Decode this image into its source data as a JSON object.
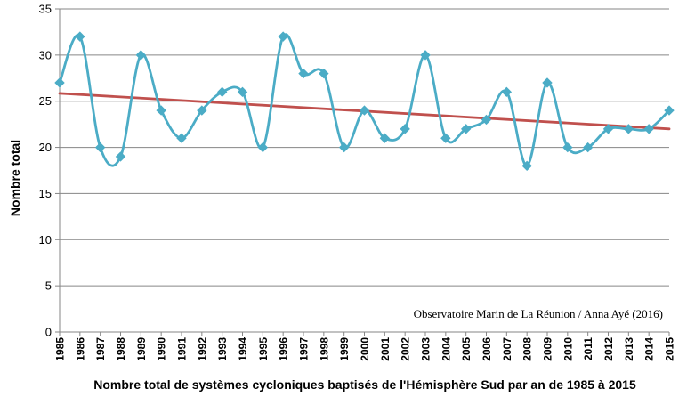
{
  "chart_data": {
    "type": "line",
    "title": "",
    "xlabel": "Nombre total de systèmes cycloniques baptisés de l'Hémisphère Sud par an de 1985 à 2015",
    "ylabel": "Nombre total",
    "annotation": "Observatoire Marin de La Réunion / Anna Ayé (2016)",
    "ylim": [
      0,
      35
    ],
    "yticks": [
      0,
      5,
      10,
      15,
      20,
      25,
      30,
      35
    ],
    "grid": "horizontal",
    "legend": "none",
    "x": [
      1985,
      1986,
      1987,
      1988,
      1989,
      1990,
      1991,
      1992,
      1993,
      1994,
      1995,
      1996,
      1997,
      1998,
      1999,
      2000,
      2001,
      2002,
      2003,
      2004,
      2005,
      2006,
      2007,
      2008,
      2009,
      2010,
      2011,
      2012,
      2013,
      2014,
      2015
    ],
    "x_tick_labels": [
      "1985",
      "1986",
      "1987",
      "1988",
      "1989",
      "1990",
      "1991",
      "1992",
      "1993",
      "1994",
      "1995",
      "1996",
      "1997",
      "1998",
      "1999",
      "2000",
      "2001",
      "2002",
      "2003",
      "2004",
      "2005",
      "2006",
      "2007",
      "2008",
      "2009",
      "2010",
      "2011",
      "2012",
      "2013",
      "2014",
      "2015"
    ],
    "series": [
      {
        "values": [
          27,
          32,
          20,
          19,
          30,
          24,
          21,
          24,
          26,
          26,
          20,
          32,
          28,
          28,
          20,
          24,
          21,
          22,
          30,
          21,
          22,
          23,
          26,
          18,
          27,
          20,
          20,
          22,
          22,
          22,
          24
        ],
        "color": "#4BACC6",
        "marker": "diamond",
        "smooth": true
      }
    ],
    "trendline": {
      "type": "linear",
      "start": [
        1985,
        25.85
      ],
      "end": [
        2015,
        22.0
      ],
      "color": "#C0504D"
    }
  }
}
